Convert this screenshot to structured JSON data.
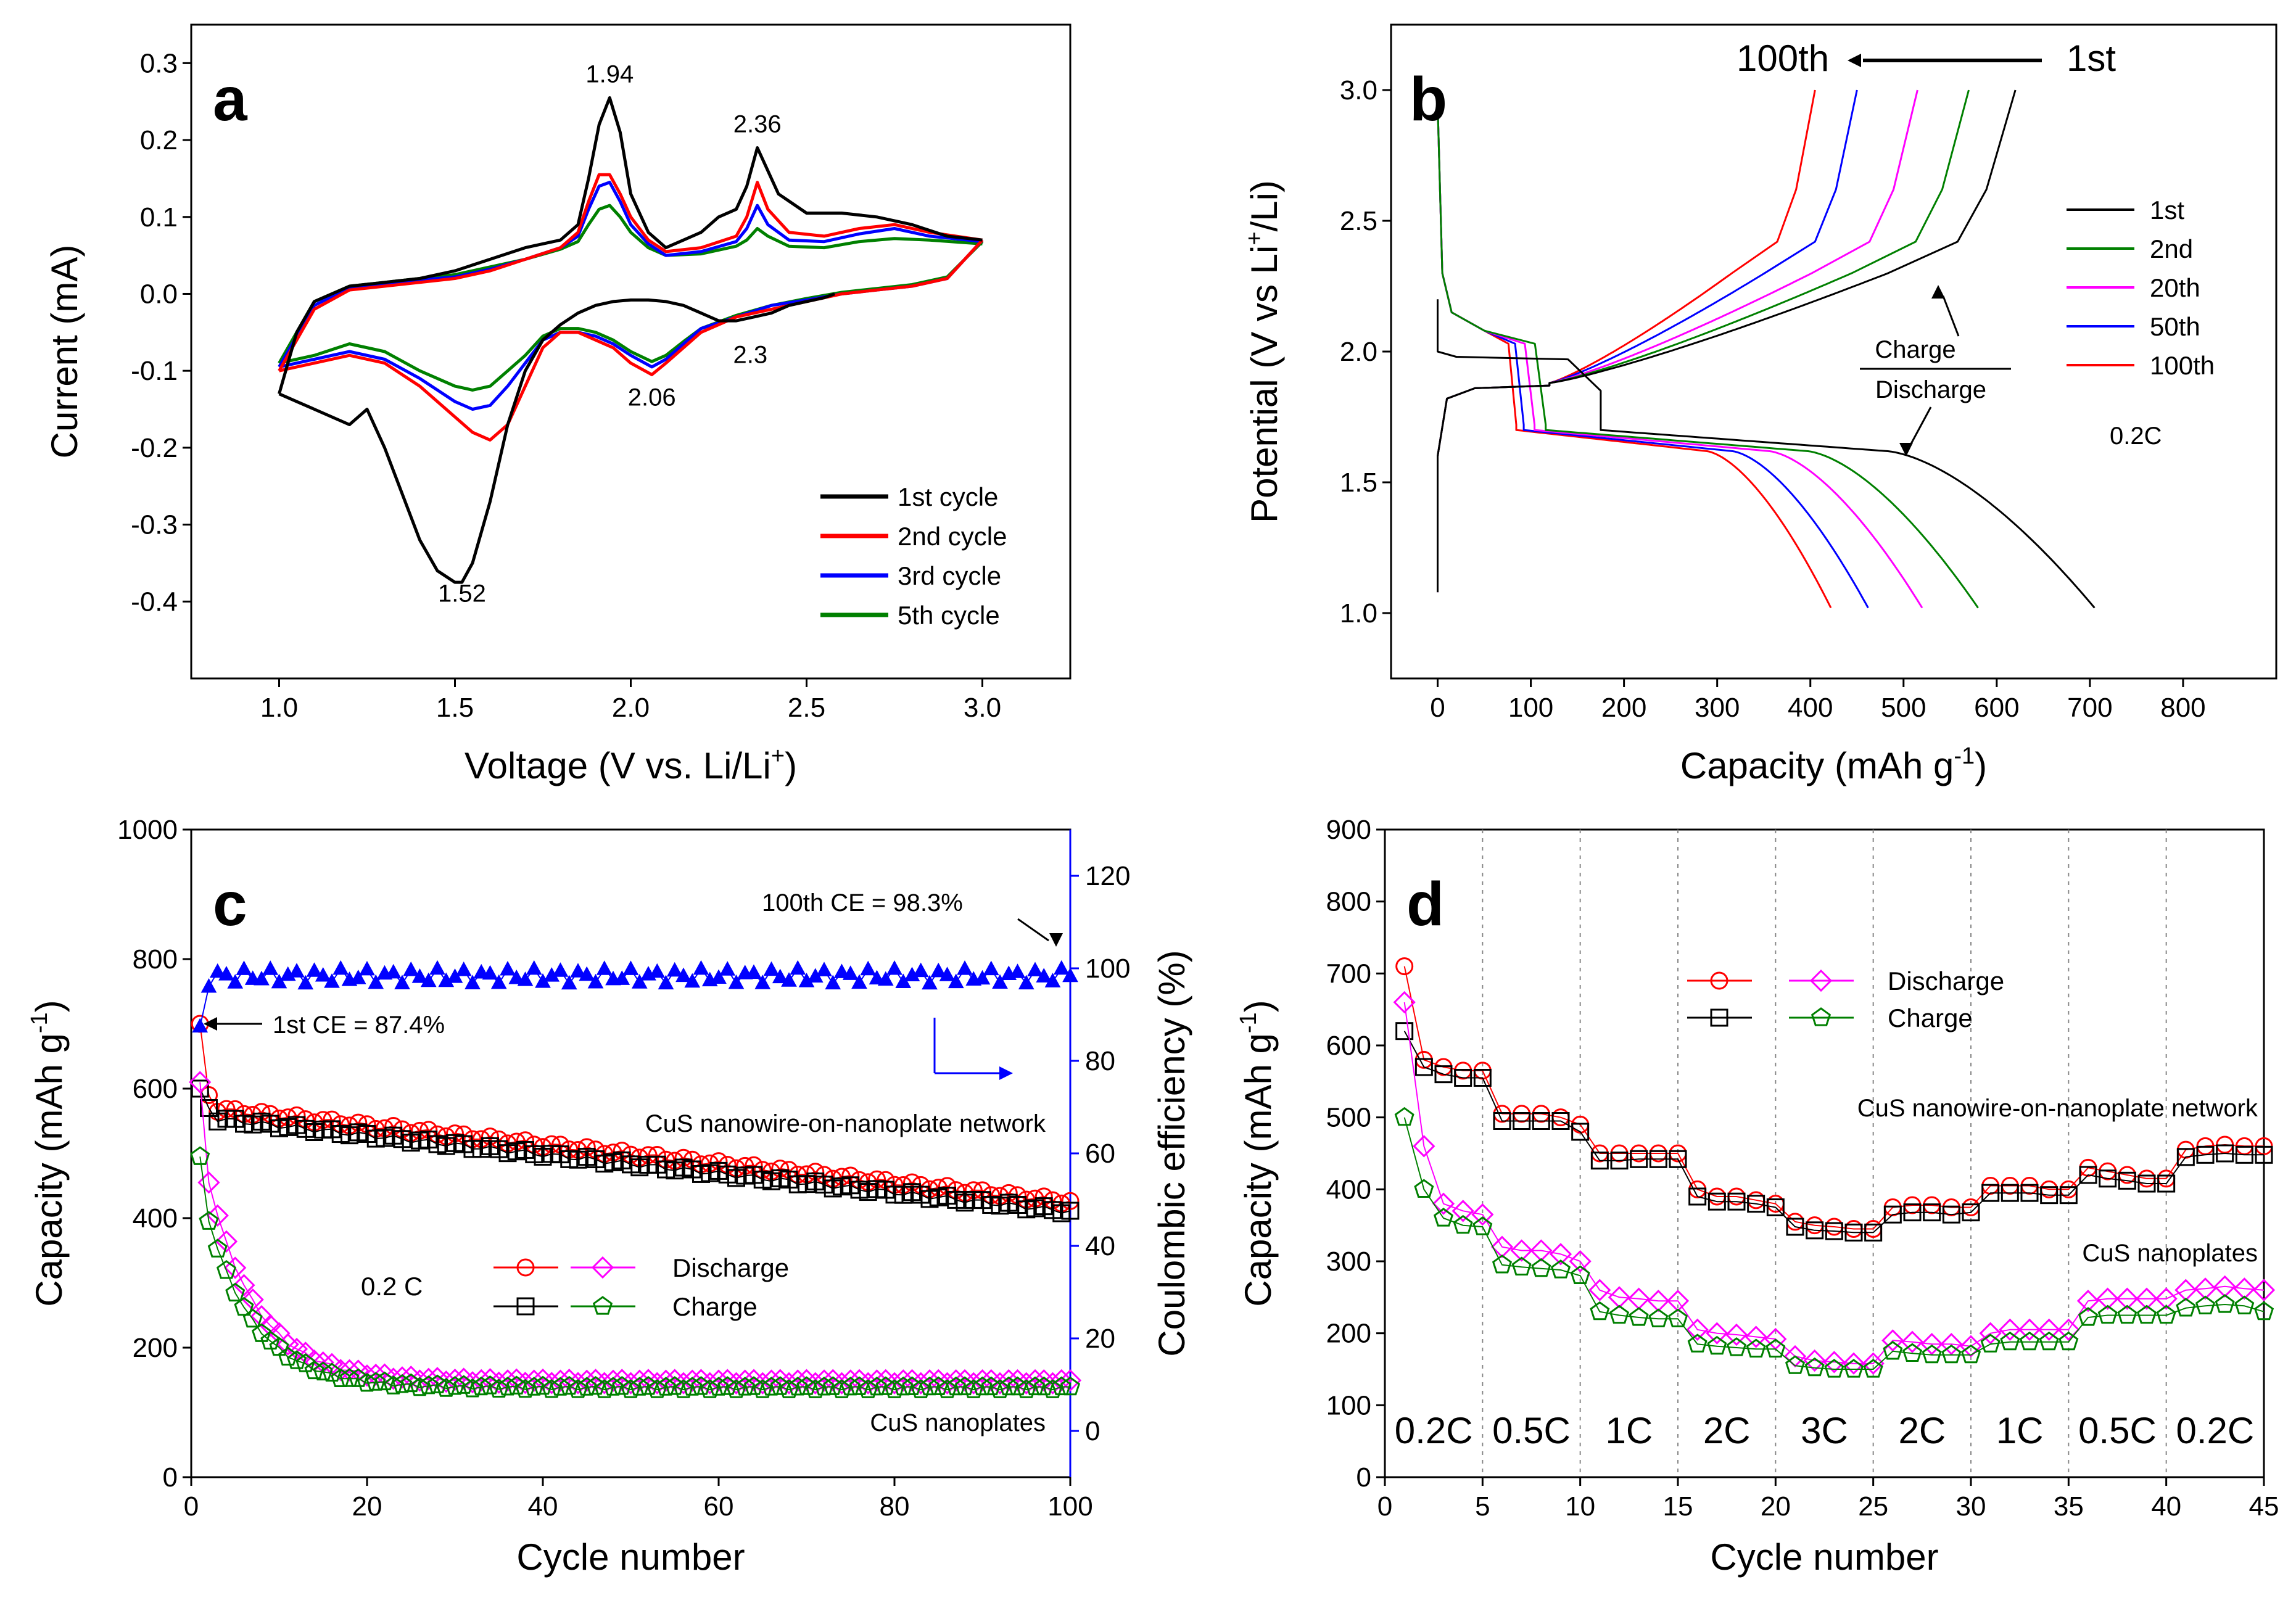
{
  "chart_data": [
    {
      "panel": "a",
      "type": "line",
      "xlabel": "Voltage (V vs. Li/Li",
      "xlabel_sup": "+",
      "xlabel_end": ")",
      "ylabel": "Current (mA)",
      "xlim": [
        0.75,
        3.25
      ],
      "ylim": [
        -0.5,
        0.35
      ],
      "xticks": [
        "1.0",
        "1.5",
        "2.0",
        "2.5",
        "3.0"
      ],
      "xtick_values": [
        1.0,
        1.5,
        2.0,
        2.5,
        3.0
      ],
      "yticks": [
        "-0.4",
        "-0.3",
        "-0.2",
        "-0.1",
        "0.0",
        "0.1",
        "0.2",
        "0.3"
      ],
      "ytick_values": [
        -0.4,
        -0.3,
        -0.2,
        -0.1,
        0.0,
        0.1,
        0.2,
        0.3
      ],
      "annotations": [
        {
          "text": "1.94",
          "x": 1.94,
          "y": 0.275
        },
        {
          "text": "2.36",
          "x": 2.36,
          "y": 0.21
        },
        {
          "text": "2.3",
          "x": 2.34,
          "y": -0.09
        },
        {
          "text": "2.06",
          "x": 2.06,
          "y": -0.145
        },
        {
          "text": "1.52",
          "x": 1.52,
          "y": -0.4
        }
      ],
      "legend_position": "lower-right",
      "series": [
        {
          "name": "1st cycle",
          "color": "#000000",
          "x": [
            1.0,
            1.05,
            1.1,
            1.15,
            1.2,
            1.25,
            1.3,
            1.35,
            1.4,
            1.45,
            1.5,
            1.52,
            1.55,
            1.6,
            1.65,
            1.7,
            1.75,
            1.8,
            1.85,
            1.9,
            1.95,
            2.0,
            2.05,
            2.1,
            2.15,
            2.2,
            2.25,
            2.3,
            2.35,
            2.4,
            2.45,
            2.5,
            2.55,
            2.58
          ],
          "y": [
            -0.13,
            -0.14,
            -0.15,
            -0.16,
            -0.17,
            -0.15,
            -0.2,
            -0.26,
            -0.32,
            -0.36,
            -0.375,
            -0.375,
            -0.35,
            -0.27,
            -0.17,
            -0.1,
            -0.06,
            -0.04,
            -0.025,
            -0.015,
            -0.01,
            -0.008,
            -0.008,
            -0.01,
            -0.015,
            -0.025,
            -0.035,
            -0.035,
            -0.03,
            -0.025,
            -0.015,
            -0.01,
            -0.005,
            0.0
          ],
          "x2": [
            1.0,
            1.05,
            1.1,
            1.2,
            1.3,
            1.4,
            1.5,
            1.6,
            1.7,
            1.8,
            1.85,
            1.88,
            1.91,
            1.94,
            1.97,
            2.0,
            2.05,
            2.1,
            2.15,
            2.2,
            2.25,
            2.3,
            2.33,
            2.36,
            2.39,
            2.42,
            2.5,
            2.6,
            2.7,
            2.8,
            2.9,
            3.0
          ],
          "y2": [
            -0.13,
            -0.05,
            -0.01,
            0.01,
            0.015,
            0.02,
            0.03,
            0.045,
            0.06,
            0.07,
            0.09,
            0.15,
            0.22,
            0.255,
            0.21,
            0.13,
            0.08,
            0.06,
            0.07,
            0.08,
            0.1,
            0.11,
            0.14,
            0.19,
            0.16,
            0.13,
            0.105,
            0.105,
            0.1,
            0.09,
            0.075,
            0.07
          ]
        },
        {
          "name": "2nd cycle",
          "color": "#ff0000",
          "x": [
            1.0,
            1.1,
            1.2,
            1.3,
            1.4,
            1.5,
            1.55,
            1.6,
            1.65,
            1.7,
            1.75,
            1.8,
            1.85,
            1.9,
            1.95,
            2.0,
            2.06,
            2.1,
            2.15,
            2.2,
            2.3,
            2.4,
            2.5,
            2.6,
            2.7,
            2.8,
            2.9,
            3.0
          ],
          "y": [
            -0.1,
            -0.09,
            -0.08,
            -0.09,
            -0.12,
            -0.16,
            -0.18,
            -0.19,
            -0.17,
            -0.12,
            -0.07,
            -0.05,
            -0.05,
            -0.06,
            -0.07,
            -0.09,
            -0.105,
            -0.09,
            -0.07,
            -0.05,
            -0.03,
            -0.02,
            -0.01,
            0.0,
            0.005,
            0.01,
            0.02,
            0.07
          ],
          "x2": [
            1.0,
            1.1,
            1.2,
            1.3,
            1.4,
            1.5,
            1.6,
            1.7,
            1.8,
            1.85,
            1.88,
            1.91,
            1.94,
            1.97,
            2.0,
            2.05,
            2.1,
            2.2,
            2.3,
            2.33,
            2.36,
            2.39,
            2.45,
            2.55,
            2.65,
            2.75,
            2.85,
            3.0
          ],
          "y2": [
            -0.1,
            -0.02,
            0.005,
            0.01,
            0.015,
            0.02,
            0.03,
            0.045,
            0.06,
            0.08,
            0.12,
            0.155,
            0.155,
            0.13,
            0.1,
            0.07,
            0.055,
            0.06,
            0.075,
            0.1,
            0.145,
            0.11,
            0.08,
            0.075,
            0.085,
            0.09,
            0.08,
            0.07
          ]
        },
        {
          "name": "3rd cycle",
          "color": "#0000ff",
          "x": [
            1.0,
            1.1,
            1.2,
            1.3,
            1.4,
            1.5,
            1.55,
            1.6,
            1.65,
            1.7,
            1.75,
            1.8,
            1.85,
            1.9,
            1.95,
            2.0,
            2.06,
            2.1,
            2.15,
            2.2,
            2.3,
            2.4,
            2.5,
            2.6,
            2.7,
            2.8,
            2.9,
            3.0
          ],
          "y": [
            -0.095,
            -0.085,
            -0.075,
            -0.085,
            -0.11,
            -0.14,
            -0.15,
            -0.145,
            -0.12,
            -0.09,
            -0.06,
            -0.05,
            -0.05,
            -0.055,
            -0.065,
            -0.08,
            -0.095,
            -0.085,
            -0.065,
            -0.045,
            -0.03,
            -0.015,
            -0.008,
            0.0,
            0.005,
            0.01,
            0.02,
            0.07
          ],
          "x2": [
            1.0,
            1.1,
            1.2,
            1.3,
            1.4,
            1.5,
            1.6,
            1.7,
            1.8,
            1.85,
            1.88,
            1.91,
            1.94,
            1.97,
            2.0,
            2.05,
            2.1,
            2.2,
            2.3,
            2.33,
            2.36,
            2.39,
            2.45,
            2.55,
            2.65,
            2.75,
            2.85,
            3.0
          ],
          "y2": [
            -0.095,
            -0.015,
            0.008,
            0.012,
            0.018,
            0.022,
            0.032,
            0.045,
            0.06,
            0.075,
            0.11,
            0.14,
            0.145,
            0.12,
            0.09,
            0.065,
            0.05,
            0.055,
            0.068,
            0.085,
            0.115,
            0.09,
            0.07,
            0.068,
            0.078,
            0.085,
            0.075,
            0.068
          ]
        },
        {
          "name": "5th cycle",
          "color": "#008000",
          "x": [
            1.0,
            1.1,
            1.2,
            1.3,
            1.4,
            1.5,
            1.55,
            1.6,
            1.65,
            1.7,
            1.75,
            1.8,
            1.85,
            1.9,
            1.95,
            2.0,
            2.06,
            2.1,
            2.15,
            2.2,
            2.3,
            2.4,
            2.5,
            2.6,
            2.7,
            2.8,
            2.9,
            3.0
          ],
          "y": [
            -0.09,
            -0.08,
            -0.065,
            -0.075,
            -0.1,
            -0.12,
            -0.125,
            -0.12,
            -0.1,
            -0.08,
            -0.055,
            -0.045,
            -0.045,
            -0.05,
            -0.06,
            -0.075,
            -0.088,
            -0.08,
            -0.062,
            -0.045,
            -0.028,
            -0.015,
            -0.006,
            0.002,
            0.007,
            0.012,
            0.022,
            0.068
          ],
          "x2": [
            1.0,
            1.1,
            1.2,
            1.3,
            1.4,
            1.5,
            1.6,
            1.7,
            1.8,
            1.85,
            1.88,
            1.91,
            1.94,
            1.97,
            2.0,
            2.05,
            2.1,
            2.2,
            2.3,
            2.33,
            2.36,
            2.39,
            2.45,
            2.55,
            2.65,
            2.75,
            2.85,
            3.0
          ],
          "y2": [
            -0.09,
            -0.01,
            0.01,
            0.015,
            0.02,
            0.025,
            0.035,
            0.045,
            0.058,
            0.068,
            0.09,
            0.11,
            0.115,
            0.1,
            0.08,
            0.06,
            0.05,
            0.052,
            0.062,
            0.07,
            0.085,
            0.075,
            0.062,
            0.06,
            0.068,
            0.072,
            0.07,
            0.065
          ]
        }
      ]
    },
    {
      "panel": "b",
      "type": "line",
      "xlabel": "Capacity (mAh g",
      "xlabel_sup": "-1",
      "xlabel_end": ")",
      "ylabel": "Potential (V vs Li",
      "ylabel_sup": "+",
      "ylabel_end": "/Li)",
      "xlim": [
        -50,
        900
      ],
      "ylim": [
        0.75,
        3.25
      ],
      "xticks": [
        "0",
        "100",
        "200",
        "300",
        "400",
        "500",
        "600",
        "700",
        "800"
      ],
      "xtick_values": [
        0,
        100,
        200,
        300,
        400,
        500,
        600,
        700,
        800
      ],
      "yticks": [
        "1.0",
        "1.5",
        "2.0",
        "2.5",
        "3.0"
      ],
      "ytick_values": [
        1.0,
        1.5,
        2.0,
        2.5,
        3.0
      ],
      "arrow_labels": {
        "from": "1st",
        "to": "100th"
      },
      "charge_label": "Charge",
      "discharge_label": "Discharge",
      "rate_label": "0.2C",
      "legend_position": "right",
      "series": [
        {
          "name": "1st",
          "color": "#000000",
          "discharge_end": 705,
          "charge_end": 620,
          "first": true
        },
        {
          "name": "2nd",
          "color": "#008000",
          "discharge_end": 580,
          "charge_end": 570
        },
        {
          "name": "20th",
          "color": "#ff00ff",
          "discharge_end": 520,
          "charge_end": 515
        },
        {
          "name": "50th",
          "color": "#0000ff",
          "discharge_end": 462,
          "charge_end": 450
        },
        {
          "name": "100th",
          "color": "#ff0000",
          "discharge_end": 422,
          "charge_end": 405
        }
      ]
    },
    {
      "panel": "c",
      "type": "scatter",
      "xlabel": "Cycle number",
      "ylabel": "Capacity (mAh g",
      "ylabel_sup": "-1",
      "ylabel_end": ")",
      "y2label": "Coulombic efficiency (%)",
      "xlim": [
        0,
        100
      ],
      "ylim": [
        0,
        1000
      ],
      "y2lim": [
        -10,
        130
      ],
      "xticks": [
        "0",
        "20",
        "40",
        "60",
        "80",
        "100"
      ],
      "xtick_values": [
        0,
        20,
        40,
        60,
        80,
        100
      ],
      "yticks": [
        "0",
        "200",
        "400",
        "600",
        "800",
        "1000"
      ],
      "ytick_values": [
        0,
        200,
        400,
        600,
        800,
        1000
      ],
      "y2ticks": [
        "0",
        "20",
        "40",
        "60",
        "80",
        "100",
        "120"
      ],
      "y2tick_values": [
        0,
        20,
        40,
        60,
        80,
        100,
        120
      ],
      "annotations": {
        "ce_first": "1st CE = 87.4%",
        "ce_last": "100th CE = 98.3%",
        "network": "CuS nanowire-on-nanoplate network",
        "nanoplates": "CuS nanoplates",
        "rate": "0.2 C"
      },
      "legend": {
        "discharge": "Discharge",
        "charge": "Charge"
      },
      "network_discharge": {
        "start": 700,
        "p2": 590,
        "p5": 565,
        "end": 425
      },
      "network_charge": {
        "start": 600,
        "p2": 570,
        "p5": 550,
        "end": 410
      },
      "plates_discharge": {
        "start": 610,
        "p2": 455,
        "mid": 200,
        "end": 148
      },
      "plates_charge": {
        "start": 495,
        "p2": 395,
        "mid": 175,
        "end": 138
      },
      "ce": {
        "first": 87.4,
        "level": 98.3,
        "last": 98.3
      }
    },
    {
      "panel": "d",
      "type": "scatter",
      "xlabel": "Cycle number",
      "ylabel": "Capacity (mAh g",
      "ylabel_sup": "-1",
      "ylabel_end": ")",
      "xlim": [
        0,
        45
      ],
      "ylim": [
        0,
        900
      ],
      "xticks": [
        "0",
        "5",
        "10",
        "15",
        "20",
        "25",
        "30",
        "35",
        "40",
        "45"
      ],
      "xtick_values": [
        0,
        5,
        10,
        15,
        20,
        25,
        30,
        35,
        40,
        45
      ],
      "yticks": [
        "0",
        "100",
        "200",
        "300",
        "400",
        "500",
        "600",
        "700",
        "800",
        "900"
      ],
      "ytick_values": [
        0,
        100,
        200,
        300,
        400,
        500,
        600,
        700,
        800,
        900
      ],
      "rate_labels": [
        "0.2C",
        "0.5C",
        "1C",
        "2C",
        "3C",
        "2C",
        "1C",
        "0.5C",
        "0.2C"
      ],
      "annotations": {
        "network": "CuS nanowire-on-nanoplate network",
        "nanoplates": "CuS nanoplates"
      },
      "legend": {
        "discharge": "Discharge",
        "charge": "Charge"
      },
      "network_discharge": [
        710,
        580,
        570,
        565,
        565,
        505,
        505,
        505,
        500,
        490,
        450,
        450,
        450,
        450,
        450,
        400,
        390,
        390,
        385,
        380,
        355,
        350,
        348,
        345,
        345,
        375,
        378,
        378,
        375,
        375,
        405,
        405,
        405,
        400,
        400,
        430,
        425,
        420,
        415,
        415,
        455,
        460,
        462,
        460,
        460
      ],
      "network_charge": [
        620,
        570,
        560,
        555,
        555,
        495,
        495,
        495,
        495,
        480,
        440,
        440,
        442,
        442,
        442,
        390,
        383,
        383,
        380,
        375,
        348,
        343,
        342,
        340,
        340,
        365,
        368,
        368,
        365,
        368,
        395,
        395,
        395,
        392,
        392,
        420,
        415,
        412,
        408,
        408,
        445,
        448,
        450,
        448,
        448
      ],
      "plates_discharge": [
        660,
        460,
        380,
        370,
        365,
        320,
        315,
        315,
        310,
        300,
        260,
        250,
        248,
        245,
        245,
        205,
        200,
        198,
        195,
        192,
        168,
        162,
        160,
        158,
        158,
        190,
        188,
        185,
        185,
        182,
        200,
        205,
        205,
        205,
        205,
        245,
        248,
        248,
        248,
        248,
        260,
        262,
        265,
        262,
        260
      ],
      "plates_charge": [
        500,
        400,
        360,
        350,
        348,
        295,
        292,
        290,
        288,
        280,
        230,
        225,
        222,
        220,
        220,
        185,
        182,
        180,
        178,
        178,
        155,
        152,
        150,
        150,
        150,
        175,
        172,
        170,
        170,
        170,
        185,
        188,
        188,
        188,
        188,
        222,
        225,
        225,
        225,
        225,
        235,
        238,
        240,
        238,
        230
      ]
    }
  ]
}
